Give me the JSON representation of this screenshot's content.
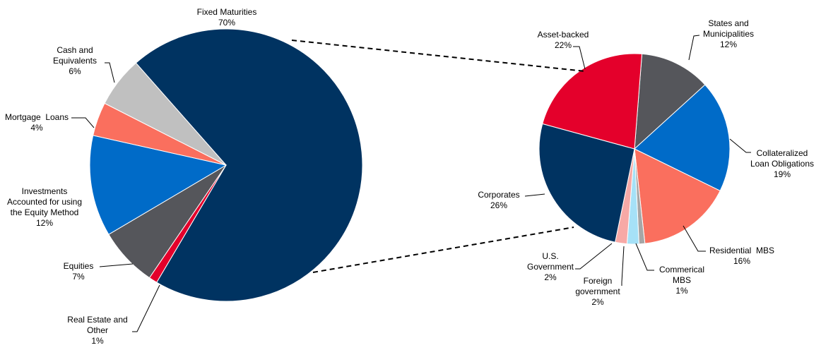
{
  "chart_data": [
    {
      "type": "pie",
      "title": "",
      "slices": [
        {
          "label": [
            "Fixed Maturities"
          ],
          "pct_label": "70%",
          "value": 70,
          "color": "#003361"
        },
        {
          "label": [
            "Real Estate and",
            "Other"
          ],
          "pct_label": "1%",
          "value": 1,
          "color": "#E4002B"
        },
        {
          "label": [
            "Equities"
          ],
          "pct_label": "7%",
          "value": 7,
          "color": "#55565B"
        },
        {
          "label": [
            "Investments",
            "Accounted for using",
            "the Equity Method"
          ],
          "pct_label": "12%",
          "value": 12,
          "color": "#006BC8"
        },
        {
          "label": [
            "Mortgage  Loans"
          ],
          "pct_label": "4%",
          "value": 4,
          "color": "#FA6F5E"
        },
        {
          "label": [
            "Cash and",
            "Equivalents"
          ],
          "pct_label": "6%",
          "value": 6,
          "color": "#C0C0C0"
        }
      ]
    },
    {
      "type": "pie",
      "title": "",
      "slices": [
        {
          "label": [
            "States and",
            "Municipalities"
          ],
          "pct_label": "12%",
          "value": 12,
          "color": "#55565B"
        },
        {
          "label": [
            "Collateralized",
            "Loan Obligations"
          ],
          "pct_label": "19%",
          "value": 19,
          "color": "#006BC8"
        },
        {
          "label": [
            "Residential  MBS"
          ],
          "pct_label": "16%",
          "value": 16,
          "color": "#FA6F5E"
        },
        {
          "label": [
            "Commerical",
            "MBS"
          ],
          "pct_label": "1%",
          "value": 1,
          "color": "#A6A6A6"
        },
        {
          "label": [
            "Foreign",
            "government"
          ],
          "pct_label": "2%",
          "value": 2,
          "color": "#A6E1F7"
        },
        {
          "label": [
            "U.S.",
            "Government"
          ],
          "pct_label": "2%",
          "value": 2,
          "color": "#F7A9A6"
        },
        {
          "label": [
            "Corporates"
          ],
          "pct_label": "26%",
          "value": 26,
          "color": "#003361"
        },
        {
          "label": [
            "Asset-backed"
          ],
          "pct_label": "22%",
          "value": 22,
          "color": "#E4002B"
        }
      ]
    }
  ]
}
